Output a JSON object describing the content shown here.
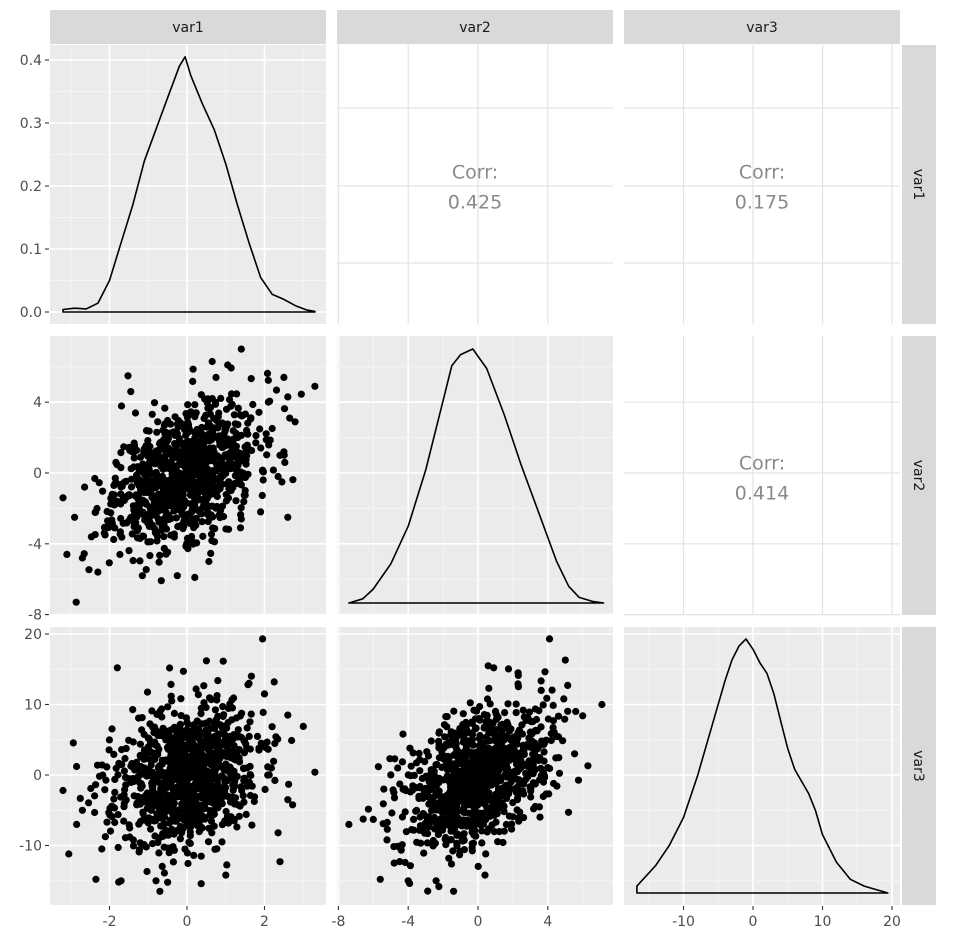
{
  "chart_data": {
    "type": "scatter",
    "title": "",
    "description": "Generalized pairs plot (ggpairs) of three variables",
    "variables": [
      "var1",
      "var2",
      "var3"
    ],
    "column_strips": [
      "var1",
      "var2",
      "var3"
    ],
    "row_strips": [
      "var1",
      "var2",
      "var3"
    ],
    "n_points_approx": 1000,
    "correlations": [
      {
        "row": 0,
        "col": 1,
        "label": "Corr:",
        "value": "0.425",
        "pair": [
          "var1",
          "var2"
        ]
      },
      {
        "row": 0,
        "col": 2,
        "label": "Corr:",
        "value": "0.175",
        "pair": [
          "var1",
          "var3"
        ]
      },
      {
        "row": 1,
        "col": 2,
        "label": "Corr:",
        "value": "0.414",
        "pair": [
          "var2",
          "var3"
        ]
      }
    ],
    "axes": {
      "var1": {
        "range": [
          -3.3,
          3.6
        ],
        "ticks": [
          -2,
          0,
          2
        ],
        "tick_labels": [
          "-2",
          "0",
          "2"
        ]
      },
      "var2": {
        "range": [
          -7.6,
          7.2
        ],
        "ticks": [
          -8,
          -4,
          0,
          4
        ],
        "tick_labels": [
          "-8",
          "-4",
          "0",
          "4"
        ]
      },
      "var3": {
        "range": [
          -17,
          20
        ],
        "ticks": [
          -10,
          0,
          10,
          20
        ],
        "tick_labels": [
          "-10",
          "0",
          "10",
          "20"
        ]
      },
      "density_y": {
        "range": [
          0,
          0.42
        ],
        "ticks": [
          0.0,
          0.1,
          0.2,
          0.3,
          0.4
        ],
        "tick_labels": [
          "0.0",
          "0.1",
          "0.2",
          "0.3",
          "0.4"
        ]
      }
    },
    "distributions": {
      "var1": {
        "mean": -0.05,
        "sd": 1.0
      },
      "var2": {
        "mean": 0.0,
        "sd": 2.2
      },
      "var3": {
        "mean": -0.3,
        "sd": 5.4
      }
    },
    "densities": {
      "var1": {
        "x": [
          -3.2,
          -2.9,
          -2.6,
          -2.3,
          -2.0,
          -1.7,
          -1.4,
          -1.1,
          -0.8,
          -0.5,
          -0.2,
          -0.05,
          0.1,
          0.4,
          0.7,
          1.0,
          1.3,
          1.6,
          1.9,
          2.2,
          2.5,
          2.8,
          3.1,
          3.3
        ],
        "y": [
          0.004,
          0.006,
          0.005,
          0.014,
          0.05,
          0.11,
          0.17,
          0.24,
          0.29,
          0.34,
          0.39,
          0.405,
          0.375,
          0.33,
          0.29,
          0.235,
          0.17,
          0.11,
          0.055,
          0.028,
          0.02,
          0.01,
          0.003,
          0.001
        ]
      },
      "var2": {
        "x": [
          -7.4,
          -6.6,
          -6.0,
          -5.0,
          -4.0,
          -3.0,
          -2.0,
          -1.5,
          -1.0,
          -0.3,
          0.5,
          1.5,
          2.5,
          3.5,
          4.5,
          5.2,
          5.8,
          6.6,
          7.2
        ],
        "y": [
          0.0,
          0.003,
          0.01,
          0.028,
          0.055,
          0.095,
          0.145,
          0.17,
          0.178,
          0.182,
          0.168,
          0.135,
          0.098,
          0.064,
          0.03,
          0.012,
          0.004,
          0.001,
          0.0
        ]
      },
      "var3": {
        "x": [
          -16.7,
          -14,
          -12,
          -10,
          -8,
          -6,
          -4,
          -3,
          -2,
          -1,
          0,
          1,
          2,
          3,
          4,
          5,
          6,
          8,
          9,
          10,
          12,
          14,
          16,
          19.4
        ],
        "y": [
          0.002,
          0.008,
          0.014,
          0.022,
          0.034,
          0.048,
          0.062,
          0.068,
          0.072,
          0.074,
          0.071,
          0.067,
          0.064,
          0.058,
          0.05,
          0.042,
          0.036,
          0.029,
          0.024,
          0.017,
          0.009,
          0.004,
          0.002,
          0.0
        ]
      }
    },
    "scatter_panels": [
      {
        "row": 1,
        "col": 0,
        "x": "var1",
        "y": "var2",
        "seed": 11,
        "rho": 0.425,
        "visible_outliers": [
          [
            -2.86,
            -7.3
          ],
          [
            -3.2,
            -1.4
          ],
          [
            -2.9,
            -2.5
          ],
          [
            -3.1,
            -4.6
          ],
          [
            -2.7,
            -4.8
          ],
          [
            -2.3,
            -5.6
          ],
          [
            -1.45,
            4.6
          ],
          [
            1.4,
            7.0
          ],
          [
            0.65,
            6.3
          ],
          [
            1.05,
            6.1
          ],
          [
            3.3,
            4.9
          ],
          [
            2.95,
            4.45
          ],
          [
            2.5,
            5.4
          ],
          [
            2.6,
            4.3
          ],
          [
            2.65,
            3.1
          ],
          [
            2.6,
            -2.5
          ],
          [
            0.2,
            -5.9
          ],
          [
            -0.25,
            -5.8
          ],
          [
            -1.15,
            -5.8
          ],
          [
            -2.05,
            -2.7
          ],
          [
            2.4,
            1.0
          ],
          [
            2.5,
            1.2
          ],
          [
            2.35,
            -0.2
          ],
          [
            2.45,
            -0.5
          ],
          [
            1.9,
            -2.2
          ],
          [
            1.4,
            -2.6
          ]
        ]
      },
      {
        "row": 2,
        "col": 0,
        "x": "var1",
        "y": "var3",
        "seed": 23,
        "rho": 0.175,
        "visible_outliers": [
          [
            1.95,
            19.3
          ],
          [
            -1.8,
            15.2
          ],
          [
            3.3,
            0.4
          ],
          [
            -3.2,
            -2.2
          ],
          [
            -2.85,
            1.2
          ],
          [
            -3.05,
            -11.2
          ],
          [
            -2.35,
            -14.8
          ],
          [
            -1.7,
            -15.0
          ],
          [
            -0.7,
            -16.5
          ],
          [
            2.4,
            -12.3
          ],
          [
            2.35,
            -8.2
          ],
          [
            2.6,
            8.5
          ],
          [
            3.0,
            6.9
          ],
          [
            2.0,
            11.5
          ],
          [
            2.25,
            13.2
          ],
          [
            1.6,
            13.0
          ],
          [
            -2.7,
            -5.0
          ],
          [
            -2.85,
            -7.0
          ],
          [
            -2.2,
            -10.5
          ],
          [
            0.5,
            16.2
          ],
          [
            -0.8,
            -15.0
          ],
          [
            1.0,
            -14.2
          ],
          [
            2.6,
            -3.5
          ],
          [
            2.7,
            4.9
          ]
        ]
      },
      {
        "row": 2,
        "col": 1,
        "x": "var2",
        "y": "var3",
        "seed": 37,
        "rho": 0.414,
        "visible_outliers": [
          [
            -7.4,
            -7.0
          ],
          [
            4.1,
            19.3
          ],
          [
            5.0,
            16.3
          ],
          [
            0.9,
            15.2
          ],
          [
            2.3,
            14.5
          ],
          [
            7.1,
            10.0
          ],
          [
            6.3,
            1.3
          ],
          [
            -5.6,
            -14.8
          ],
          [
            -4.0,
            -15.0
          ],
          [
            -1.4,
            -16.5
          ],
          [
            0.4,
            -14.2
          ],
          [
            -4.3,
            5.8
          ],
          [
            -2.4,
            -15.0
          ],
          [
            -4.8,
            -12.5
          ],
          [
            5.6,
            9.0
          ],
          [
            6.0,
            8.4
          ],
          [
            -6.0,
            -6.3
          ],
          [
            -5.4,
            -2.0
          ],
          [
            -4.6,
            1.0
          ],
          [
            -3.9,
            3.8
          ]
        ]
      }
    ],
    "layout": {
      "panel_bg": "#ebebeb",
      "upper_bg": "#ffffff",
      "strip_bg": "#d9d9d9",
      "grid_major": "#ffffff",
      "upper_grid": "#e3e3e3",
      "point_color": "#000000",
      "line_color": "#000000",
      "text_color": "#4d4d4d",
      "corr_text_color": "#8a8a8a",
      "grid": true,
      "legend": "none"
    }
  }
}
